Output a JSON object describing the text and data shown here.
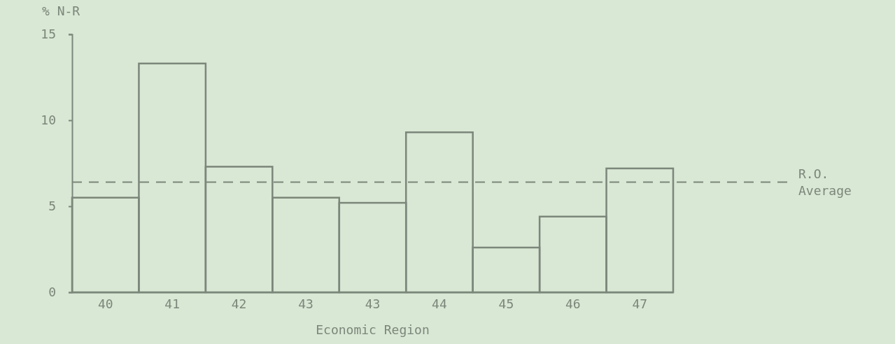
{
  "chart_data": {
    "type": "bar",
    "xlabel": "Economic Region",
    "ylabel": "% N-R",
    "categories": [
      "40",
      "41",
      "42",
      "43",
      "43",
      "44",
      "45",
      "46",
      "47"
    ],
    "values": [
      5.5,
      13.3,
      7.3,
      5.5,
      5.2,
      9.3,
      2.6,
      4.4,
      7.2
    ],
    "color": "#7b877a",
    "ylim": [
      0,
      15
    ],
    "yticks": [
      0,
      5,
      10,
      15
    ],
    "grid": false,
    "ref_lines": [
      {
        "axis": "y",
        "value": 6.4,
        "label": "R.O. Average",
        "color": "#7b877a",
        "line_style": "dashed"
      }
    ]
  }
}
